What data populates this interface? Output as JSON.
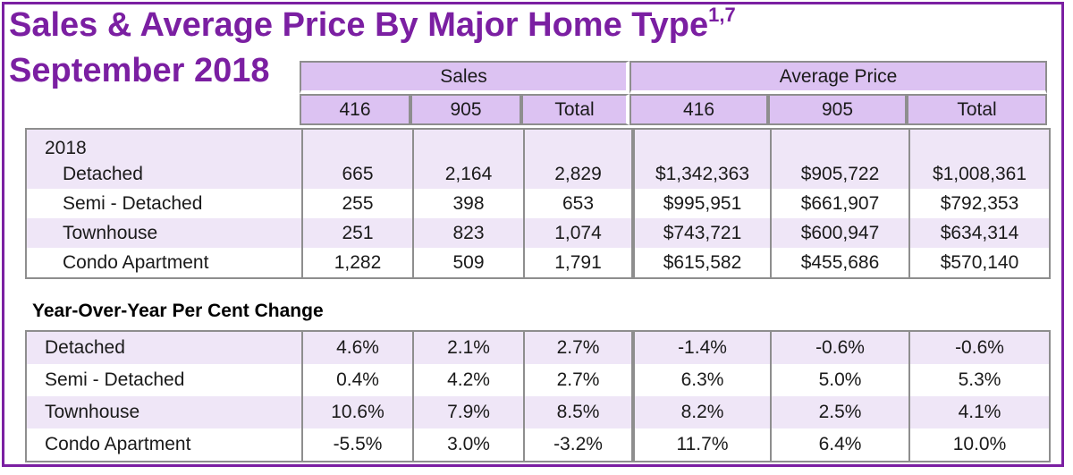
{
  "title": {
    "line1": "Sales & Average Price By Major Home Type",
    "superscript": "1,7",
    "line2": "September 2018"
  },
  "header": {
    "sales_label": "Sales",
    "avg_price_label": "Average Price",
    "columns": [
      "416",
      "905",
      "Total",
      "416",
      "905",
      "Total"
    ]
  },
  "year_label": "2018",
  "rows_2018": [
    {
      "type": "Detached",
      "values": [
        "665",
        "2,164",
        "2,829",
        "$1,342,363",
        "$905,722",
        "$1,008,361"
      ]
    },
    {
      "type": "Semi - Detached",
      "values": [
        "255",
        "398",
        "653",
        "$995,951",
        "$661,907",
        "$792,353"
      ]
    },
    {
      "type": "Townhouse",
      "values": [
        "251",
        "823",
        "1,074",
        "$743,721",
        "$600,947",
        "$634,314"
      ]
    },
    {
      "type": "Condo Apartment",
      "values": [
        "1,282",
        "509",
        "1,791",
        "$615,582",
        "$455,686",
        "$570,140"
      ]
    }
  ],
  "yoy_title": "Year-Over-Year Per Cent Change",
  "yoy_rows": [
    {
      "type": "Detached",
      "values": [
        "4.6%",
        "2.1%",
        "2.7%",
        "-1.4%",
        "-0.6%",
        "-0.6%"
      ]
    },
    {
      "type": "Semi - Detached",
      "values": [
        "0.4%",
        "4.2%",
        "2.7%",
        "6.3%",
        "5.0%",
        "5.3%"
      ]
    },
    {
      "type": "Townhouse",
      "values": [
        "10.6%",
        "7.9%",
        "8.5%",
        "8.2%",
        "2.5%",
        "4.1%"
      ]
    },
    {
      "type": "Condo Apartment",
      "values": [
        "-5.5%",
        "3.0%",
        "-3.2%",
        "11.7%",
        "6.4%",
        "10.0%"
      ]
    }
  ],
  "colors": {
    "title": "#7b1fa2",
    "header_fill": "#dcc2f2",
    "row_shade": "#efe6f7",
    "border": "#8e8e8e"
  }
}
